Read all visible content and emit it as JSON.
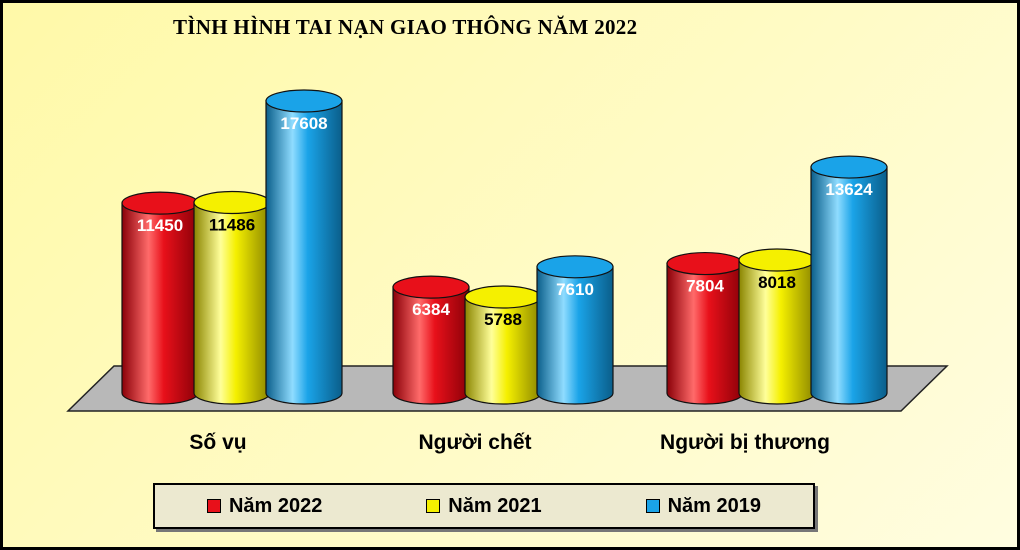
{
  "chart_data": {
    "type": "bar",
    "title": "TÌNH HÌNH TAI NẠN GIAO THÔNG NĂM 2022",
    "categories": [
      "Số vụ",
      "Người chết",
      "Người bị thương"
    ],
    "series": [
      {
        "name": "Năm 2022",
        "color": "#e8101a",
        "values": [
          11450,
          6384,
          7804
        ]
      },
      {
        "name": "Năm 2021",
        "color": "#f5f000",
        "values": [
          11486,
          5788,
          8018
        ]
      },
      {
        "name": "Năm 2019",
        "color": "#1aa3e8",
        "values": [
          17608,
          7610,
          13624
        ]
      }
    ],
    "ylim": [
      0,
      20000
    ],
    "legend": "bottom",
    "grid": false
  }
}
